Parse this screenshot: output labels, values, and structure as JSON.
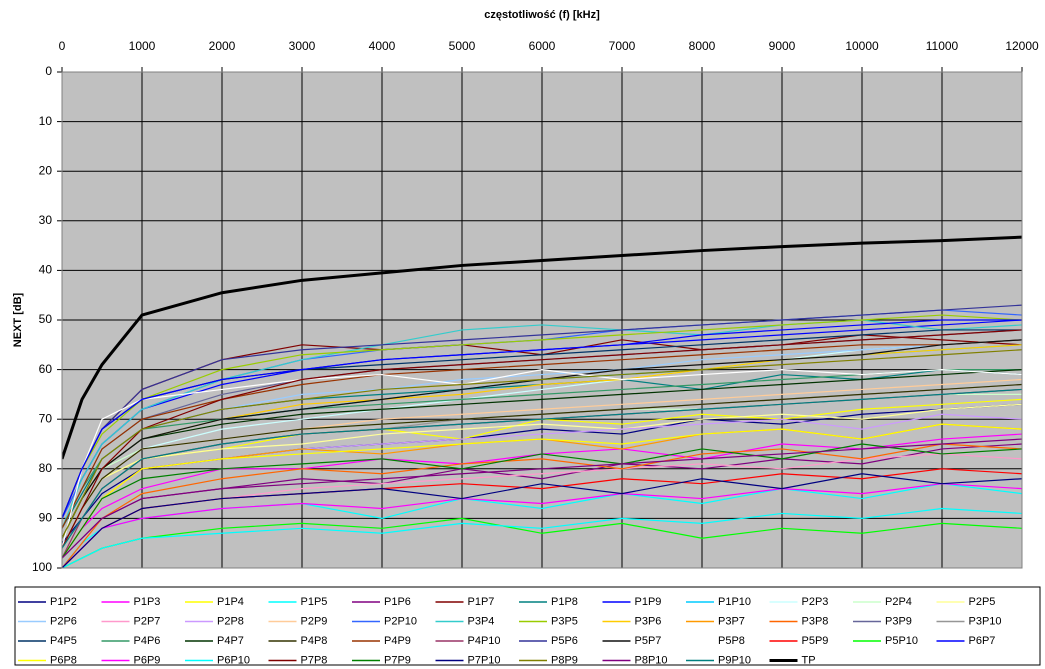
{
  "chart_data": {
    "type": "line",
    "title": "częstotliwość (f) [kHz]",
    "y_label": "NEXT [dB]",
    "x": [
      0,
      250,
      500,
      1000,
      2000,
      3000,
      4000,
      5000,
      6000,
      7000,
      8000,
      9000,
      10000,
      11000,
      12000
    ],
    "xlim": [
      0,
      12000
    ],
    "xticks": [
      0,
      1000,
      2000,
      3000,
      4000,
      5000,
      6000,
      7000,
      8000,
      9000,
      10000,
      11000,
      12000
    ],
    "ylim": [
      0,
      100
    ],
    "yticks": [
      0,
      10,
      20,
      30,
      40,
      50,
      60,
      70,
      80,
      90,
      100
    ],
    "y_inverted": true,
    "grid": true,
    "x_axis_position": "top",
    "legend": "bottom",
    "series": [
      {
        "name": "P1P2",
        "color": "#000080",
        "values": [
          95,
          90,
          85,
          80,
          78,
          76,
          75,
          74,
          72,
          73,
          70,
          71,
          69,
          68,
          67
        ]
      },
      {
        "name": "P1P3",
        "color": "#FF00FF",
        "values": [
          98,
          92,
          88,
          84,
          80,
          80,
          78,
          79,
          77,
          76,
          78,
          75,
          76,
          74,
          73
        ]
      },
      {
        "name": "P1P4",
        "color": "#FFFF00",
        "values": [
          96,
          88,
          82,
          78,
          76,
          73,
          72,
          74,
          70,
          71,
          69,
          70,
          68,
          67,
          66
        ]
      },
      {
        "name": "P1P5",
        "color": "#00FFFF",
        "values": [
          100,
          95,
          92,
          90,
          88,
          87,
          90,
          86,
          88,
          85,
          87,
          84,
          86,
          83,
          85
        ]
      },
      {
        "name": "P1P6",
        "color": "#800080",
        "values": [
          98,
          94,
          90,
          86,
          84,
          82,
          83,
          80,
          82,
          79,
          80,
          78,
          79,
          76,
          75
        ]
      },
      {
        "name": "P1P7",
        "color": "#800000",
        "values": [
          90,
          80,
          72,
          64,
          58,
          55,
          56,
          55,
          57,
          54,
          56,
          55,
          53,
          54,
          55
        ]
      },
      {
        "name": "P1P8",
        "color": "#008080",
        "values": [
          92,
          85,
          78,
          72,
          68,
          66,
          65,
          64,
          63,
          62,
          64,
          61,
          62,
          60,
          61
        ]
      },
      {
        "name": "P1P9",
        "color": "#0000FF",
        "values": [
          90,
          82,
          75,
          68,
          63,
          60,
          58,
          57,
          56,
          55,
          54,
          53,
          52,
          51,
          50
        ]
      },
      {
        "name": "P1P10",
        "color": "#00CCFF",
        "values": [
          94,
          86,
          80,
          74,
          70,
          68,
          66,
          64,
          62,
          61,
          60,
          58,
          57,
          56,
          55
        ]
      },
      {
        "name": "P2P3",
        "color": "#CCFFFF",
        "values": [
          96,
          88,
          82,
          76,
          72,
          70,
          68,
          66,
          64,
          62,
          60,
          58,
          56,
          55,
          54
        ]
      },
      {
        "name": "P2P4",
        "color": "#CCFFCC",
        "values": [
          94,
          86,
          80,
          76,
          74,
          72,
          71,
          70,
          69,
          68,
          68,
          67,
          66,
          65,
          65
        ]
      },
      {
        "name": "P2P5",
        "color": "#FFFF99",
        "values": [
          96,
          88,
          82,
          78,
          76,
          75,
          73,
          72,
          71,
          72,
          70,
          69,
          70,
          68,
          67
        ]
      },
      {
        "name": "P2P6",
        "color": "#99CCFF",
        "values": [
          92,
          84,
          78,
          72,
          68,
          65,
          64,
          62,
          61,
          60,
          58,
          57,
          56,
          55,
          54
        ]
      },
      {
        "name": "P2P7",
        "color": "#FF99CC",
        "values": [
          100,
          96,
          92,
          88,
          86,
          84,
          83,
          82,
          81,
          80,
          79,
          80,
          78,
          77,
          78
        ]
      },
      {
        "name": "P2P8",
        "color": "#CC99FF",
        "values": [
          98,
          92,
          86,
          80,
          78,
          76,
          75,
          74,
          73,
          72,
          71,
          70,
          72,
          69,
          70
        ]
      },
      {
        "name": "P2P9",
        "color": "#FFCC99",
        "values": [
          96,
          88,
          82,
          76,
          74,
          72,
          70,
          69,
          68,
          67,
          66,
          65,
          64,
          63,
          62
        ]
      },
      {
        "name": "P2P10",
        "color": "#3366FF",
        "values": [
          90,
          82,
          75,
          68,
          62,
          58,
          56,
          55,
          54,
          52,
          51,
          50,
          49,
          48,
          49
        ]
      },
      {
        "name": "P3P4",
        "color": "#33CCCC",
        "values": [
          92,
          82,
          75,
          68,
          62,
          58,
          55,
          52,
          51,
          52,
          53,
          51,
          50,
          52,
          51
        ]
      },
      {
        "name": "P3P5",
        "color": "#99CC00",
        "values": [
          90,
          80,
          73,
          66,
          60,
          57,
          56,
          55,
          54,
          53,
          52,
          51,
          50,
          49,
          50
        ]
      },
      {
        "name": "P3P6",
        "color": "#FFCC00",
        "values": [
          94,
          86,
          80,
          74,
          70,
          67,
          66,
          65,
          63,
          62,
          60,
          58,
          57,
          56,
          55
        ]
      },
      {
        "name": "P3P7",
        "color": "#FF9900",
        "values": [
          98,
          92,
          86,
          80,
          78,
          76,
          77,
          75,
          74,
          76,
          73,
          72,
          74,
          71,
          72
        ]
      },
      {
        "name": "P3P8",
        "color": "#FF6600",
        "values": [
          100,
          95,
          90,
          85,
          82,
          80,
          81,
          79,
          78,
          80,
          77,
          76,
          78,
          75,
          76
        ]
      },
      {
        "name": "P3P9",
        "color": "#666699",
        "values": [
          92,
          84,
          76,
          70,
          65,
          62,
          60,
          59,
          58,
          57,
          56,
          55,
          54,
          53,
          52
        ]
      },
      {
        "name": "P3P10",
        "color": "#969696",
        "values": [
          96,
          90,
          84,
          78,
          75,
          73,
          72,
          70,
          69,
          68,
          67,
          66,
          65,
          64,
          63
        ]
      },
      {
        "name": "P4P5",
        "color": "#003366",
        "values": [
          90,
          80,
          72,
          66,
          62,
          60,
          59,
          58,
          57,
          56,
          55,
          54,
          53,
          52,
          52
        ]
      },
      {
        "name": "P4P6",
        "color": "#339966",
        "values": [
          92,
          84,
          78,
          72,
          70,
          68,
          67,
          66,
          65,
          64,
          63,
          62,
          61,
          60,
          60
        ]
      },
      {
        "name": "P4P7",
        "color": "#003300",
        "values": [
          94,
          86,
          80,
          74,
          71,
          69,
          68,
          67,
          66,
          65,
          64,
          63,
          62,
          61,
          60
        ]
      },
      {
        "name": "P4P8",
        "color": "#333300",
        "values": [
          96,
          88,
          82,
          76,
          74,
          72,
          71,
          70,
          69,
          68,
          67,
          66,
          65,
          64,
          63
        ]
      },
      {
        "name": "P4P9",
        "color": "#993300",
        "values": [
          92,
          84,
          76,
          70,
          66,
          63,
          61,
          60,
          59,
          58,
          57,
          56,
          55,
          55,
          54
        ]
      },
      {
        "name": "P4P10",
        "color": "#993366",
        "values": [
          98,
          90,
          84,
          78,
          75,
          73,
          72,
          71,
          70,
          69,
          68,
          67,
          66,
          65,
          64
        ]
      },
      {
        "name": "P5P6",
        "color": "#333399",
        "values": [
          90,
          80,
          72,
          64,
          58,
          56,
          55,
          54,
          53,
          52,
          51,
          50,
          49,
          48,
          47
        ]
      },
      {
        "name": "P5P7",
        "color": "#111111",
        "values": [
          94,
          86,
          80,
          74,
          70,
          68,
          66,
          64,
          62,
          60,
          59,
          58,
          57,
          55,
          54
        ]
      },
      {
        "name": "P5P8",
        "color": "#FFFFFF",
        "values": [
          96,
          80,
          70,
          66,
          64,
          62,
          61,
          63,
          60,
          62,
          61,
          60,
          61,
          60,
          61
        ]
      },
      {
        "name": "P5P9",
        "color": "#FF0000",
        "values": [
          100,
          96,
          92,
          88,
          86,
          85,
          84,
          83,
          84,
          82,
          83,
          81,
          82,
          80,
          81
        ]
      },
      {
        "name": "P5P10",
        "color": "#00FF00",
        "values": [
          100,
          98,
          96,
          94,
          92,
          91,
          92,
          90,
          93,
          91,
          94,
          92,
          93,
          91,
          92
        ]
      },
      {
        "name": "P6P7",
        "color": "#0000FF",
        "values": [
          90,
          80,
          72,
          66,
          62,
          60,
          58,
          57,
          56,
          55,
          53,
          52,
          51,
          50,
          50
        ]
      },
      {
        "name": "P6P8",
        "color": "#FFFF00",
        "values": [
          98,
          92,
          86,
          80,
          78,
          77,
          76,
          75,
          74,
          75,
          73,
          72,
          74,
          71,
          72
        ]
      },
      {
        "name": "P6P9",
        "color": "#FF00FF",
        "values": [
          100,
          96,
          92,
          90,
          88,
          87,
          88,
          86,
          87,
          85,
          86,
          84,
          85,
          83,
          84
        ]
      },
      {
        "name": "P6P10",
        "color": "#00FFFF",
        "values": [
          100,
          98,
          96,
          94,
          93,
          92,
          93,
          91,
          92,
          90,
          91,
          89,
          90,
          88,
          89
        ]
      },
      {
        "name": "P7P8",
        "color": "#800000",
        "values": [
          96,
          88,
          80,
          72,
          66,
          62,
          60,
          59,
          58,
          57,
          56,
          55,
          54,
          53,
          52
        ]
      },
      {
        "name": "P7P9",
        "color": "#008000",
        "values": [
          98,
          92,
          86,
          82,
          80,
          79,
          78,
          80,
          77,
          79,
          76,
          78,
          75,
          77,
          76
        ]
      },
      {
        "name": "P7P10",
        "color": "#000080",
        "values": [
          100,
          96,
          92,
          88,
          86,
          85,
          84,
          86,
          83,
          85,
          82,
          84,
          81,
          83,
          82
        ]
      },
      {
        "name": "P8P9",
        "color": "#808000",
        "values": [
          94,
          86,
          78,
          72,
          68,
          66,
          64,
          63,
          62,
          61,
          60,
          59,
          58,
          57,
          56
        ]
      },
      {
        "name": "P8P10",
        "color": "#800080",
        "values": [
          98,
          94,
          90,
          86,
          84,
          83,
          82,
          81,
          80,
          79,
          78,
          77,
          76,
          75,
          74
        ]
      },
      {
        "name": "P9P10",
        "color": "#008080",
        "values": [
          96,
          90,
          84,
          78,
          75,
          73,
          72,
          71,
          70,
          69,
          68,
          67,
          66,
          65,
          64
        ]
      },
      {
        "name": "TP",
        "color": "#000000",
        "width": 3,
        "values": [
          78,
          66,
          59,
          49,
          44.5,
          42,
          40.5,
          39,
          38,
          37,
          36,
          35.2,
          34.5,
          34,
          33.3
        ]
      }
    ]
  }
}
